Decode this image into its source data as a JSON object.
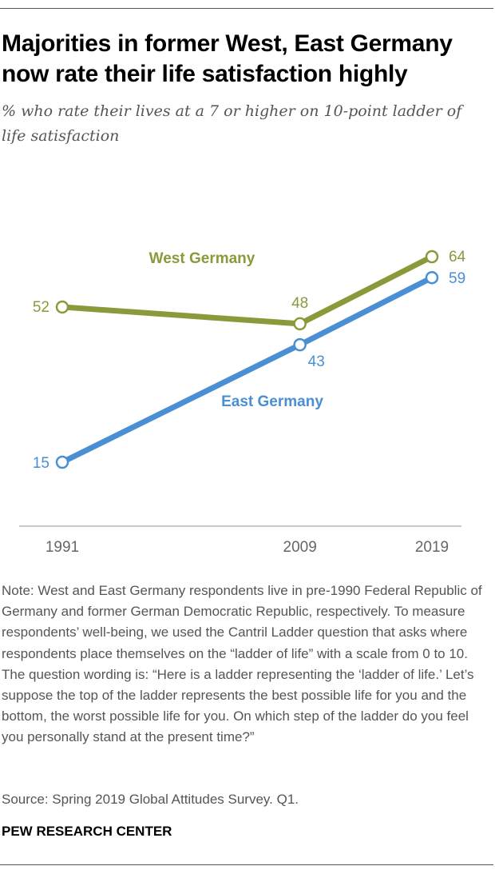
{
  "title": "Majorities in former West, East Germany now rate their life satisfaction highly",
  "subtitle": "% who rate their lives at a 7 or higher on 10-point ladder of life satisfaction",
  "note": "Note: West and East Germany respondents live in pre-1990 Federal Republic of Germany and former German Democratic Republic, respectively. To measure respondents’ well-being, we used the Cantril Ladder question that asks where respondents place themselves on the “ladder of life” with a scale from 0 to 10. The question wording is: “Here is a ladder representing the ‘ladder of life.’ Let’s suppose the top of the ladder represents the best possible life for you and the bottom, the worst possible life for you. On which step of the ladder do you feel you personally stand at the present time?”",
  "source": "Source: Spring 2019 Global Attitudes Survey. Q1.",
  "brand": "PEW RESEARCH CENTER",
  "chart_data": {
    "type": "line",
    "x": [
      1991,
      2009,
      2019
    ],
    "x_tick_labels": [
      "1991",
      "2009",
      "2019"
    ],
    "series": [
      {
        "name": "West Germany",
        "values": [
          52,
          48,
          64
        ],
        "color": "#8a9a3b"
      },
      {
        "name": "East Germany",
        "values": [
          15,
          43,
          59
        ],
        "color": "#4a8fd4"
      }
    ],
    "xlabel": "",
    "ylabel": "",
    "ylim": [
      0,
      70
    ],
    "grid": false,
    "axis_color": "#c8c8c8",
    "tick_label_color": "#666666"
  }
}
